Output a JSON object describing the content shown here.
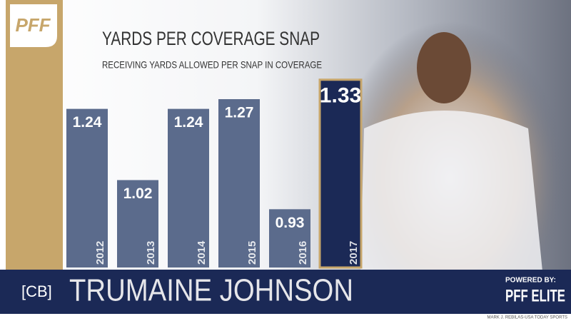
{
  "logo": "PFF",
  "chart_data": {
    "type": "bar",
    "title": "YARDS PER COVERAGE SNAP",
    "subtitle": "RECEIVING YARDS ALLOWED PER SNAP IN COVERAGE",
    "categories": [
      "2012",
      "2013",
      "2014",
      "2015",
      "2016",
      "2017"
    ],
    "values": [
      1.24,
      1.02,
      1.24,
      1.27,
      0.93,
      1.33
    ],
    "colors": [
      "#5b6b8c",
      "#5b6b8c",
      "#5b6b8c",
      "#5b6b8c",
      "#5b6b8c",
      "#1b2956"
    ],
    "ylim": [
      0.75,
      1.4
    ]
  },
  "banner": {
    "position": "[CB]",
    "player": "TRUMAINE JOHNSON",
    "powered_by": "POWERED BY:",
    "brand": "PFF ELITE"
  },
  "credit": "MARK J. REBILAS-USA TODAY SPORTS"
}
